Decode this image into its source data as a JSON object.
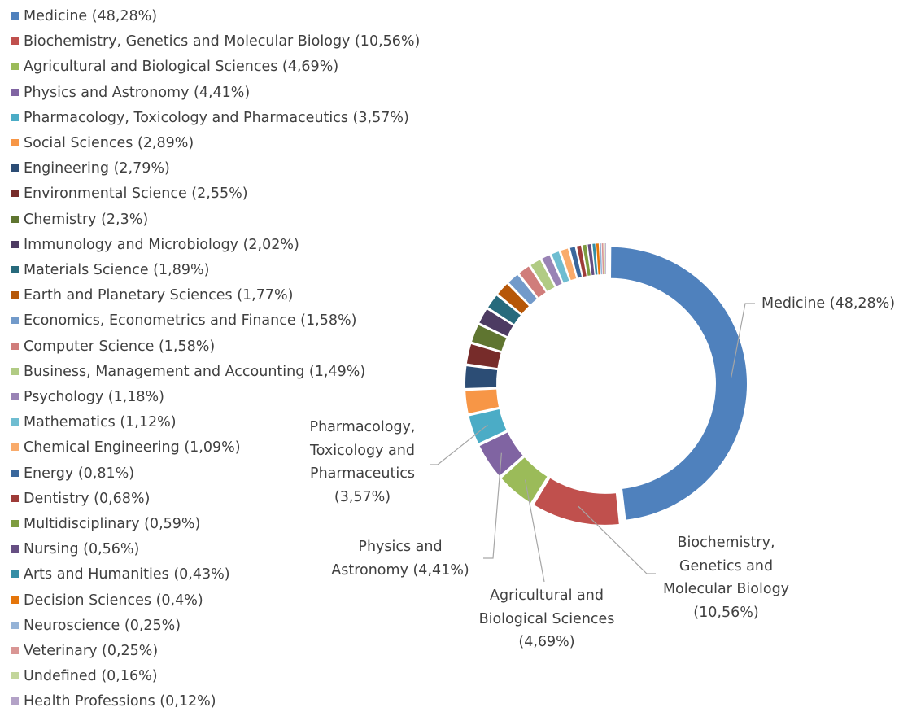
{
  "chart_data": {
    "type": "donut",
    "categories": [
      "Medicine (48,28%)",
      "Biochemistry, Genetics and Molecular Biology (10,56%)",
      "Agricultural and Biological Sciences (4,69%)",
      "Physics and Astronomy (4,41%)",
      "Pharmacology, Toxicology and Pharmaceutics (3,57%)",
      "Social Sciences (2,89%)",
      "Engineering (2,79%)",
      "Environmental Science (2,55%)",
      "Chemistry (2,3%)",
      "Immunology and Microbiology (2,02%)",
      "Materials Science (1,89%)",
      "Earth and Planetary Sciences (1,77%)",
      "Economics, Econometrics and Finance (1,58%)",
      "Computer Science (1,58%)",
      "Business, Management and Accounting (1,49%)",
      "Psychology (1,18%)",
      "Mathematics (1,12%)",
      "Chemical Engineering (1,09%)",
      "Energy (0,81%)",
      "Dentistry (0,68%)",
      "Multidisciplinary (0,59%)",
      "Nursing (0,56%)",
      "Arts and Humanities (0,43%)",
      "Decision Sciences (0,4%)",
      "Neuroscience (0,25%)",
      "Veterinary (0,25%)",
      "Undefined (0,16%)",
      "Health Professions (0,12%)"
    ],
    "values": [
      48.28,
      10.56,
      4.69,
      4.41,
      3.57,
      2.89,
      2.79,
      2.55,
      2.3,
      2.02,
      1.89,
      1.77,
      1.58,
      1.58,
      1.49,
      1.18,
      1.12,
      1.09,
      0.81,
      0.68,
      0.59,
      0.56,
      0.43,
      0.4,
      0.25,
      0.25,
      0.16,
      0.12
    ],
    "colors": [
      "#4f81bd",
      "#c0504d",
      "#9bbb59",
      "#8064a2",
      "#4bacc6",
      "#f79646",
      "#2c4d75",
      "#772c2a",
      "#5f7530",
      "#4d3b62",
      "#276a7c",
      "#b65708",
      "#729aca",
      "#d07d7b",
      "#b1cb84",
      "#9983b5",
      "#6fbdd1",
      "#f9ab6b",
      "#3a679c",
      "#9e3b38",
      "#7e9c40",
      "#664f83",
      "#358ea6",
      "#e5750a",
      "#95b3d7",
      "#d99694",
      "#c3d69b",
      "#b3a2c7"
    ],
    "legend": "left"
  }
}
